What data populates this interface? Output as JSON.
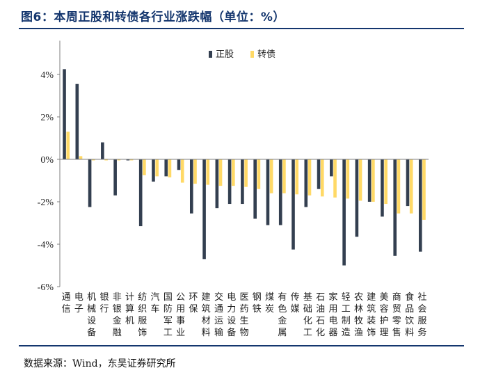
{
  "title": "图6：本周正股和转债各行业涨跌幅（单位：%）",
  "source": "数据来源：Wind，东吴证券研究所",
  "colors": {
    "stock": "#333f50",
    "bond": "#ffd966",
    "rule": "#14366e"
  },
  "chart_data": {
    "type": "bar",
    "title": "本周正股和转债各行业涨跌幅（单位：%）",
    "xlabel": "",
    "ylabel": "",
    "ylim": [
      -6,
      5
    ],
    "yticks": [
      4,
      2,
      0,
      -2,
      -4,
      -6
    ],
    "ytick_labels": [
      "4%",
      "2%",
      "0%",
      "-2%",
      "-4%",
      "-6%"
    ],
    "legend_position": "top-center",
    "categories": [
      "通信",
      "电子",
      "机械设备",
      "银行",
      "非银金融",
      "计算机",
      "纺织服饰",
      "汽车",
      "国防军工",
      "公用事业",
      "环保",
      "建筑材料",
      "交通运输",
      "电力设备",
      "医药生物",
      "钢铁",
      "煤炭",
      "有色金属",
      "传媒",
      "基础化工",
      "石油石化",
      "家用电器",
      "轻工制造",
      "农林牧渔",
      "建筑装饰",
      "美容护理",
      "商贸零售",
      "食品饮料",
      "社会服务"
    ],
    "series": [
      {
        "name": "正股",
        "values": [
          4.25,
          3.55,
          -2.25,
          0.8,
          -1.7,
          -0.05,
          -3.15,
          -1.05,
          -0.8,
          -0.5,
          -2.55,
          -4.7,
          -2.3,
          -2.1,
          -2.1,
          -2.8,
          -3.1,
          -3.1,
          -4.25,
          -2.25,
          -1.4,
          -0.8,
          -5.0,
          -3.65,
          -2.0,
          -2.7,
          -4.55,
          -2.2,
          -4.35
        ]
      },
      {
        "name": "转债",
        "values": [
          1.3,
          0.15,
          -0.05,
          -0.05,
          -0.05,
          -0.05,
          -0.75,
          -0.8,
          -0.85,
          -1.1,
          -1.15,
          -1.2,
          -1.25,
          -1.25,
          -1.3,
          -1.4,
          -1.6,
          -1.6,
          -1.65,
          -1.7,
          -1.75,
          -1.8,
          -1.85,
          -1.95,
          -2.0,
          -2.1,
          -2.55,
          -2.55,
          -2.85
        ]
      }
    ]
  }
}
